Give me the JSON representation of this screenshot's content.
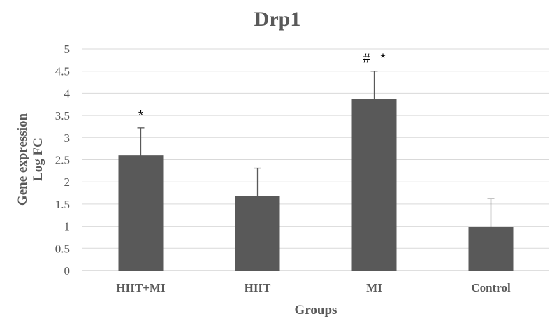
{
  "chart_data": {
    "type": "bar",
    "title": "Drp1",
    "xlabel": "Groups",
    "ylabel_lines": [
      "Gene expression",
      "Log FC"
    ],
    "categories": [
      "HIIT+MI",
      "HIIT",
      "MI",
      "Control"
    ],
    "values": [
      2.6,
      1.68,
      3.88,
      0.99
    ],
    "error": [
      0.62,
      0.63,
      0.62,
      0.63
    ],
    "annotations": [
      "*",
      "",
      "#   *",
      ""
    ],
    "ylim": [
      0,
      5
    ],
    "yticks": [
      "0",
      "0.5",
      "1",
      "1.5",
      "2",
      "2.5",
      "3",
      "3.5",
      "4",
      "4.5",
      "5"
    ],
    "grid": true,
    "legend": "none",
    "bar_color": "#595959",
    "gridline_color": "#d9d9d9",
    "text_color": "#595959"
  }
}
